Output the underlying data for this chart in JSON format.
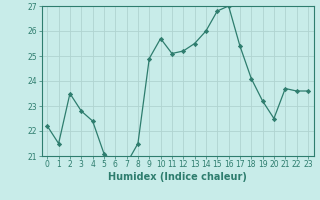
{
  "x": [
    0,
    1,
    2,
    3,
    4,
    5,
    6,
    7,
    8,
    9,
    10,
    11,
    12,
    13,
    14,
    15,
    16,
    17,
    18,
    19,
    20,
    21,
    22,
    23
  ],
  "y": [
    22.2,
    21.5,
    23.5,
    22.8,
    22.4,
    21.1,
    20.7,
    20.7,
    21.5,
    24.9,
    25.7,
    25.1,
    25.2,
    25.5,
    26.0,
    26.8,
    27.0,
    25.4,
    24.1,
    23.2,
    22.5,
    23.7,
    23.6,
    23.6
  ],
  "line_color": "#2e7d6e",
  "marker": "D",
  "marker_size": 2.2,
  "bg_color": "#c8ece9",
  "grid_color": "#b0d4d0",
  "xlabel": "Humidex (Indice chaleur)",
  "ylim": [
    21,
    27
  ],
  "xlim_min": -0.5,
  "xlim_max": 23.5,
  "yticks": [
    21,
    22,
    23,
    24,
    25,
    26,
    27
  ],
  "xticks": [
    0,
    1,
    2,
    3,
    4,
    5,
    6,
    7,
    8,
    9,
    10,
    11,
    12,
    13,
    14,
    15,
    16,
    17,
    18,
    19,
    20,
    21,
    22,
    23
  ],
  "tick_color": "#2e7d6e",
  "spine_color": "#2e7d6e",
  "label_fontsize": 7.0,
  "tick_fontsize": 5.5
}
